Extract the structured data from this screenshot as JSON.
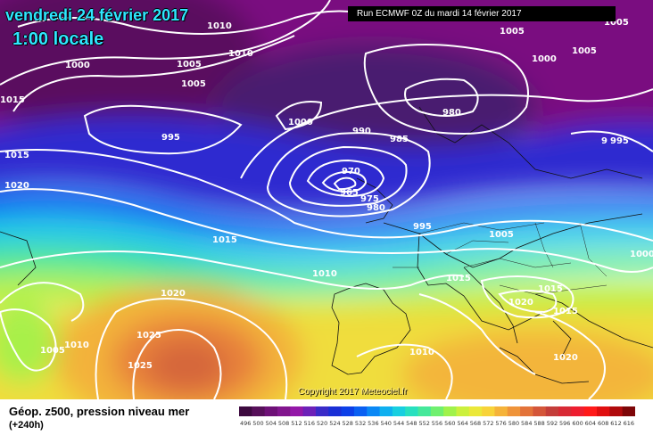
{
  "header": {
    "date_title": "vendredi 24 février 2017",
    "time_title": "1:00 locale",
    "run_info": "Run ECMWF 0Z du mardi 14 février 2017"
  },
  "footer": {
    "field_title": "Géop. z500, pression niveau mer",
    "lead_time": "(+240h)",
    "copyright": "Copyright 2017 Meteociel.fr"
  },
  "colorbar": {
    "ticks": [
      "496",
      "500",
      "504",
      "508",
      "512",
      "516",
      "520",
      "524",
      "528",
      "532",
      "536",
      "540",
      "544",
      "548",
      "552",
      "556",
      "560",
      "564",
      "568",
      "572",
      "576",
      "580",
      "584",
      "588",
      "592",
      "596",
      "600",
      "604",
      "608",
      "612",
      "616"
    ],
    "colors": [
      "#3d0a3f",
      "#57105a",
      "#6e1177",
      "#82168e",
      "#9418a8",
      "#6d21b8",
      "#3a2bc8",
      "#1a2fd6",
      "#0d40e8",
      "#0a60f2",
      "#0a88f5",
      "#0fb0f0",
      "#18cfe0",
      "#28e0bf",
      "#45e89a",
      "#70f06f",
      "#a0f24b",
      "#cbf03d",
      "#ebe83a",
      "#f8d33a",
      "#f5b33a",
      "#ef943a",
      "#e3733a",
      "#d4563a",
      "#c43e3a",
      "#d82a35",
      "#ee1e30",
      "#ff1a1a",
      "#e00f10",
      "#b00a0c",
      "#7d0608"
    ]
  },
  "isobar_labels": [
    {
      "text": "1010"
    },
    {
      "text": "1005"
    },
    {
      "text": "1000"
    },
    {
      "text": "1015"
    },
    {
      "text": "1005"
    },
    {
      "text": "1010"
    },
    {
      "text": "1005"
    },
    {
      "text": "1005"
    },
    {
      "text": "1000"
    },
    {
      "text": "1005"
    },
    {
      "text": "980"
    },
    {
      "text": "1000"
    },
    {
      "text": "990"
    },
    {
      "text": "985"
    },
    {
      "text": "995"
    },
    {
      "text": "9"
    },
    {
      "text": "995"
    },
    {
      "text": "970"
    },
    {
      "text": "965"
    },
    {
      "text": "975"
    },
    {
      "text": "980"
    },
    {
      "text": "995"
    },
    {
      "text": "1005"
    },
    {
      "text": "1015"
    },
    {
      "text": "1015"
    },
    {
      "text": "1020"
    },
    {
      "text": "1010"
    },
    {
      "text": "1000"
    },
    {
      "text": "1015"
    },
    {
      "text": "1020"
    },
    {
      "text": "1015"
    },
    {
      "text": "1020"
    },
    {
      "text": "1005"
    },
    {
      "text": "1010"
    },
    {
      "text": "1025"
    },
    {
      "text": "1025"
    },
    {
      "text": "1010"
    },
    {
      "text": "1015"
    },
    {
      "text": "1020"
    }
  ]
}
